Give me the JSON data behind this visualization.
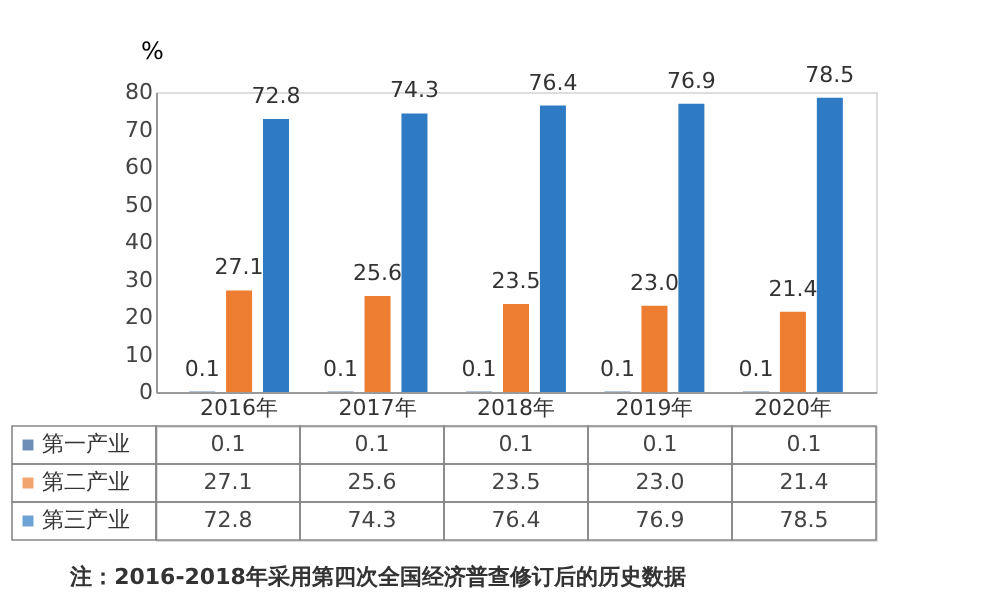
{
  "chart_data": {
    "type": "bar",
    "categories": [
      "2016年",
      "2017年",
      "2018年",
      "2019年",
      "2020年"
    ],
    "series": [
      {
        "name": "第一产业",
        "color": "#2f5f98",
        "values": [
          0.1,
          0.1,
          0.1,
          0.1,
          0.1
        ],
        "value_labels": [
          "0.1",
          "0.1",
          "0.1",
          "0.1",
          "0.1"
        ]
      },
      {
        "name": "第二产业",
        "color": "#ed7d31",
        "values": [
          27.1,
          25.6,
          23.5,
          23.0,
          21.4
        ],
        "value_labels": [
          "27.1",
          "25.6",
          "23.5",
          "23.0",
          "21.4"
        ]
      },
      {
        "name": "第三产业",
        "color": "#2e7bc4",
        "values": [
          72.8,
          74.3,
          76.4,
          76.9,
          78.5
        ],
        "value_labels": [
          "72.8",
          "74.3",
          "76.4",
          "76.9",
          "78.5"
        ]
      }
    ],
    "ylabel": "%",
    "ylim": [
      0,
      80
    ],
    "yticks": [
      0,
      10,
      20,
      30,
      40,
      50,
      60,
      70,
      80
    ],
    "grid": false,
    "legend": "bottom left",
    "annotations": [
      "注：2016-2018年采用第四次全国经济普查修订后的历史数据"
    ]
  }
}
